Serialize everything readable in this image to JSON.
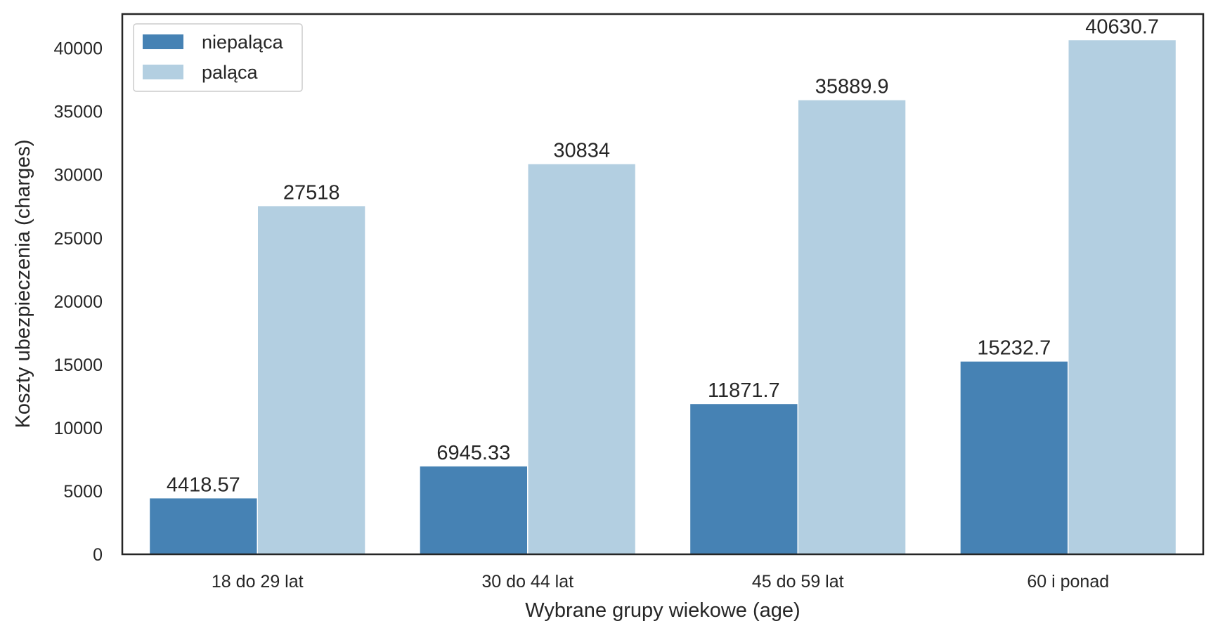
{
  "chart_data": {
    "type": "bar",
    "categories": [
      "18 do 29 lat",
      "30 do 44 lat",
      "45 do 59 lat",
      "60 i ponad"
    ],
    "series": [
      {
        "name": "niepaląca",
        "values": [
          4418.57,
          6945.33,
          11871.7,
          15232.7
        ],
        "labels": [
          "4418.57",
          "6945.33",
          "11871.7",
          "15232.7"
        ],
        "color": "#4682b4"
      },
      {
        "name": "paląca",
        "values": [
          27518,
          30834,
          35889.9,
          40630.7
        ],
        "labels": [
          "27518",
          "30834",
          "35889.9",
          "40630.7"
        ],
        "color": "#b3cfe1"
      }
    ],
    "title": "",
    "xlabel": "Wybrane grupy wiekowe (age)",
    "ylabel": "Koszty ubezpieczenia (charges)",
    "ylim": [
      0,
      42700
    ],
    "yticks": [
      0,
      5000,
      10000,
      15000,
      20000,
      25000,
      30000,
      35000,
      40000
    ],
    "grid": false,
    "legend": "top-left"
  }
}
